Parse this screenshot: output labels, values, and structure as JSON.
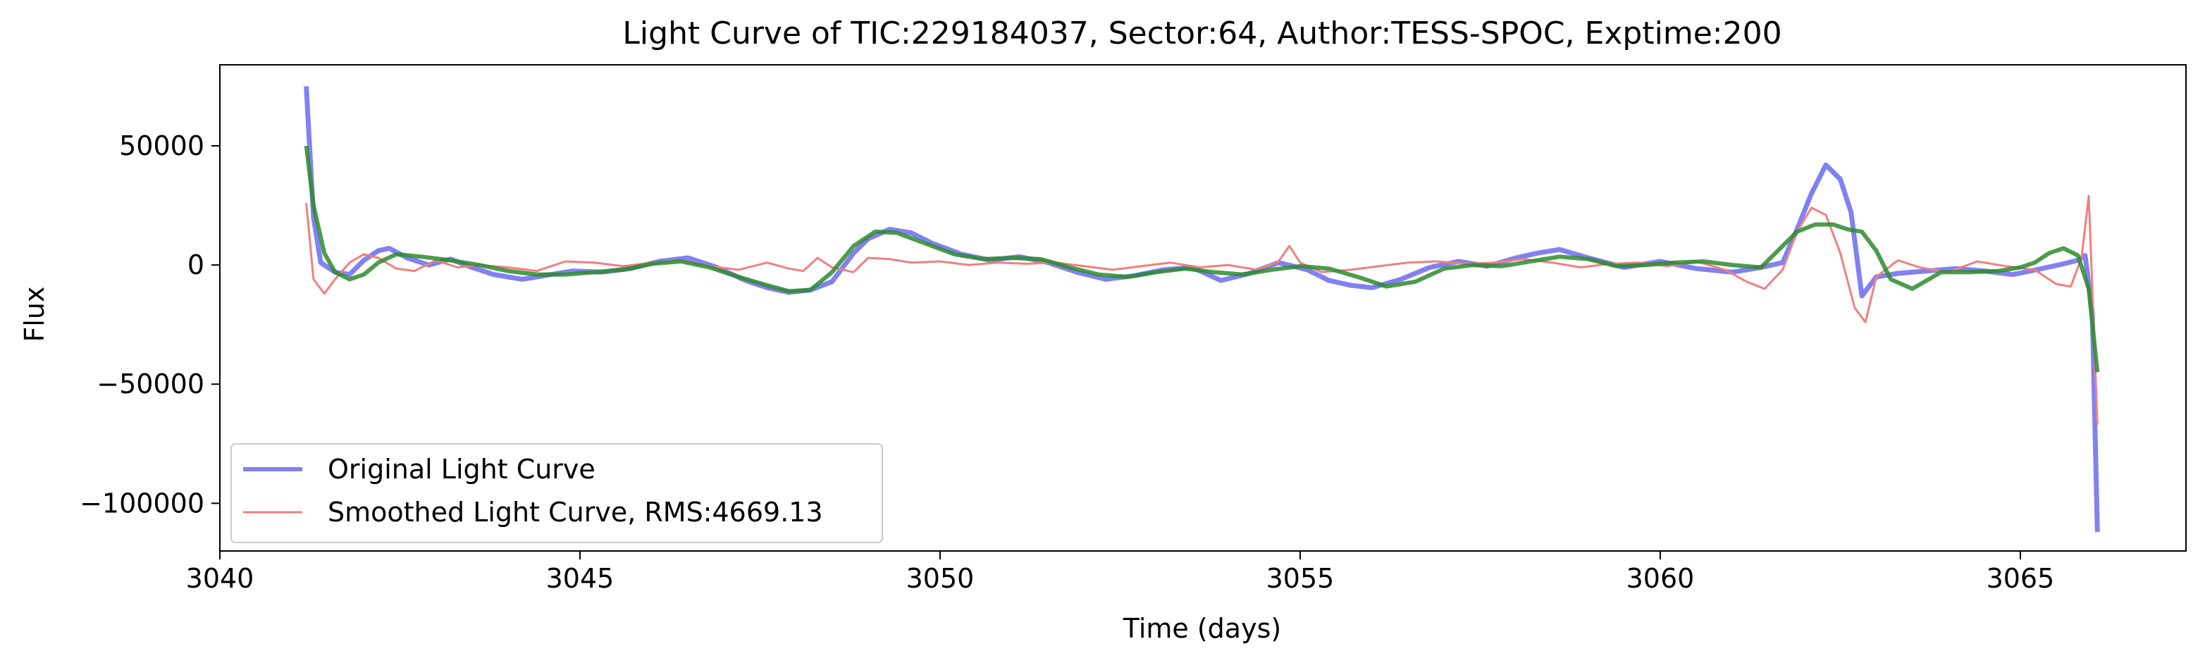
{
  "chart_data": {
    "type": "line",
    "title": "Light Curve of TIC:229184037, Sector:64, Author:TESS-SPOC, Exptime:200",
    "xlabel": "Time (days)",
    "ylabel": "Flux",
    "xlim": [
      3040.0,
      3067.3
    ],
    "ylim": [
      -120000,
      84000
    ],
    "xticks": [
      3040,
      3045,
      3050,
      3055,
      3060,
      3065
    ],
    "xtick_labels": [
      "3040",
      "3045",
      "3050",
      "3055",
      "3060",
      "3065"
    ],
    "yticks": [
      50000,
      0,
      -50000,
      -100000
    ],
    "ytick_labels": [
      "50000",
      "0",
      "−50000",
      "−100000"
    ],
    "grid": false,
    "legend_position": "lower-left",
    "legend": [
      {
        "label": "Original Light Curve",
        "color": "#6b6bf0"
      },
      {
        "label": "Smoothed Light Curve, RMS:4669.13",
        "color": "#f08080"
      }
    ],
    "series": [
      {
        "name": "Original Light Curve",
        "color": "#6b6bf0",
        "x": [
          3041.2,
          3041.3,
          3041.4,
          3041.6,
          3041.8,
          3042.0,
          3042.2,
          3042.35,
          3042.6,
          3042.9,
          3043.2,
          3043.5,
          3043.8,
          3044.2,
          3044.5,
          3044.9,
          3045.3,
          3045.7,
          3046.1,
          3046.5,
          3046.9,
          3047.3,
          3047.6,
          3047.9,
          3048.2,
          3048.5,
          3048.8,
          3049.0,
          3049.3,
          3049.6,
          3049.9,
          3050.3,
          3050.7,
          3051.1,
          3051.5,
          3051.9,
          3052.3,
          3052.7,
          3053.1,
          3053.5,
          3053.9,
          3054.3,
          3054.7,
          3055.1,
          3055.4,
          3055.7,
          3056.0,
          3056.4,
          3056.8,
          3057.2,
          3057.6,
          3058.0,
          3058.3,
          3058.6,
          3059.0,
          3059.5,
          3060.0,
          3060.5,
          3061.0,
          3061.4,
          3061.7,
          3061.9,
          3062.1,
          3062.3,
          3062.5,
          3062.65,
          3062.8,
          3063.0,
          3063.3,
          3063.7,
          3064.1,
          3064.5,
          3064.9,
          3065.3,
          3065.6,
          3065.8,
          3065.9,
          3066.0,
          3066.07
        ],
        "y": [
          75000,
          20000,
          1000,
          -3000,
          -4000,
          2000,
          6000,
          7000,
          3000,
          0,
          2500,
          -1000,
          -4000,
          -6000,
          -4500,
          -2500,
          -3000,
          -1500,
          1500,
          3000,
          -1000,
          -6500,
          -9500,
          -11500,
          -10500,
          -7000,
          5000,
          11000,
          15000,
          13500,
          9000,
          4500,
          2000,
          3500,
          1000,
          -3000,
          -6000,
          -4500,
          -2000,
          -1000,
          -6500,
          -3500,
          1000,
          -2000,
          -6500,
          -8500,
          -9500,
          -6000,
          -1000,
          1500,
          -500,
          3000,
          5000,
          6500,
          3000,
          -1000,
          1500,
          -1500,
          -3000,
          -1000,
          1000,
          15000,
          30000,
          42000,
          36000,
          22000,
          -13000,
          -5000,
          -3500,
          -2500,
          -1500,
          -2500,
          -4000,
          -1500,
          500,
          2000,
          4000,
          -20000,
          -112000
        ]
      },
      {
        "name": "Smoothed Light Curve, RMS:4669.13",
        "color": "#f08080",
        "x": [
          3041.2,
          3041.3,
          3041.45,
          3041.6,
          3041.8,
          3042.0,
          3042.2,
          3042.45,
          3042.7,
          3043.0,
          3043.3,
          3043.6,
          3044.0,
          3044.4,
          3044.8,
          3045.2,
          3045.6,
          3046.0,
          3046.4,
          3046.8,
          3047.2,
          3047.6,
          3047.9,
          3048.1,
          3048.3,
          3048.5,
          3048.8,
          3049.0,
          3049.3,
          3049.6,
          3050.0,
          3050.4,
          3050.8,
          3051.2,
          3051.6,
          3052.0,
          3052.4,
          3052.8,
          3053.2,
          3053.6,
          3054.0,
          3054.4,
          3054.7,
          3054.85,
          3055.0,
          3055.3,
          3055.7,
          3056.1,
          3056.5,
          3056.9,
          3057.3,
          3057.7,
          3058.1,
          3058.5,
          3058.9,
          3059.3,
          3059.7,
          3060.1,
          3060.5,
          3060.9,
          3061.2,
          3061.45,
          3061.7,
          3061.9,
          3062.1,
          3062.3,
          3062.5,
          3062.7,
          3062.85,
          3063.0,
          3063.3,
          3063.6,
          3064.0,
          3064.4,
          3064.8,
          3065.2,
          3065.5,
          3065.7,
          3065.85,
          3065.95,
          3066.0,
          3066.07
        ],
        "y": [
          26000,
          -6000,
          -12000,
          -6000,
          1000,
          4500,
          3000,
          -1500,
          -2500,
          2000,
          -1000,
          0,
          -1000,
          -2500,
          1500,
          1000,
          -500,
          1000,
          2000,
          -500,
          -2000,
          1000,
          -1500,
          -2500,
          3000,
          -1000,
          -3000,
          3000,
          2500,
          1000,
          1500,
          0,
          1000,
          500,
          1000,
          -500,
          -2000,
          -500,
          1000,
          -1000,
          0,
          -2000,
          1500,
          8000,
          1000,
          -3000,
          -2000,
          -500,
          1000,
          1500,
          500,
          1000,
          2500,
          1000,
          -1000,
          500,
          1000,
          -500,
          1500,
          -2000,
          -7000,
          -10000,
          -2000,
          14000,
          24000,
          21000,
          5000,
          -18000,
          -24000,
          -5000,
          2000,
          -1000,
          -3000,
          1500,
          -500,
          -2000,
          -8000,
          -9000,
          3000,
          29000,
          -10000,
          -67000
        ]
      },
      {
        "name": "",
        "color": "#2e8b2e",
        "x": [
          3041.2,
          3041.3,
          3041.45,
          3041.6,
          3041.8,
          3042.0,
          3042.2,
          3042.45,
          3042.8,
          3043.2,
          3043.6,
          3044.0,
          3044.4,
          3044.8,
          3045.2,
          3045.6,
          3046.0,
          3046.4,
          3046.8,
          3047.2,
          3047.6,
          3047.9,
          3048.2,
          3048.5,
          3048.8,
          3049.1,
          3049.4,
          3049.8,
          3050.2,
          3050.6,
          3051.0,
          3051.4,
          3051.8,
          3052.2,
          3052.6,
          3053.0,
          3053.4,
          3053.8,
          3054.2,
          3054.6,
          3055.0,
          3055.4,
          3055.8,
          3056.2,
          3056.6,
          3057.0,
          3057.4,
          3057.8,
          3058.2,
          3058.6,
          3059.0,
          3059.4,
          3059.8,
          3060.2,
          3060.6,
          3061.0,
          3061.4,
          3061.7,
          3061.9,
          3062.15,
          3062.4,
          3062.6,
          3062.8,
          3063.0,
          3063.2,
          3063.5,
          3063.9,
          3064.3,
          3064.7,
          3065.0,
          3065.2,
          3065.4,
          3065.6,
          3065.8,
          3065.95,
          3066.07
        ],
        "y": [
          50000,
          25000,
          5000,
          -3000,
          -6000,
          -4000,
          1000,
          4500,
          3500,
          2000,
          0,
          -2500,
          -4000,
          -4000,
          -3000,
          -2000,
          500,
          1500,
          -1000,
          -5000,
          -8500,
          -11000,
          -10500,
          -3000,
          8000,
          14000,
          13500,
          9000,
          4500,
          2500,
          3000,
          2500,
          -1000,
          -4000,
          -5000,
          -3000,
          -1500,
          -3000,
          -4000,
          -2000,
          -500,
          -1500,
          -5000,
          -9000,
          -7000,
          -1500,
          0,
          -500,
          1500,
          3500,
          2500,
          -500,
          0,
          1000,
          1500,
          0,
          -1000,
          8000,
          14000,
          17000,
          17000,
          15000,
          14000,
          6000,
          -6000,
          -10000,
          -3000,
          -3000,
          -2500,
          -1000,
          1000,
          5000,
          7000,
          4000,
          -10000,
          -45000
        ]
      }
    ]
  }
}
